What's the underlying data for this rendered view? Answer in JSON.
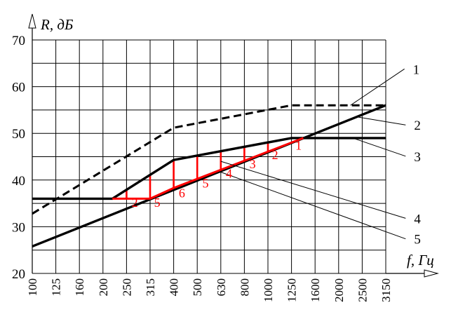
{
  "chart_data": {
    "type": "line",
    "xlabel": "f, Гц",
    "ylabel": "R, дБ",
    "categories": [
      "100",
      "125",
      "160",
      "200",
      "250",
      "315",
      "400",
      "500",
      "630",
      "800",
      "1000",
      "1250",
      "1600",
      "2000",
      "2500",
      "3150"
    ],
    "ylim": [
      20,
      70
    ],
    "yticks": [
      20,
      30,
      40,
      50,
      60,
      70
    ],
    "grid": true,
    "colors": {
      "main": "#000000",
      "highlight": "#ff0000"
    },
    "series": [
      {
        "label": "1",
        "style": "dashed",
        "points": [
          [
            0,
            32.8
          ],
          [
            6,
            51.2
          ],
          [
            11,
            56
          ],
          [
            15,
            56
          ]
        ]
      },
      {
        "label": "2",
        "style": "solid",
        "points": [
          [
            0,
            25.8
          ],
          [
            15,
            56
          ]
        ]
      },
      {
        "label": "3",
        "style": "solid",
        "points": [
          [
            0,
            36
          ],
          [
            3.4,
            36
          ],
          [
            6,
            44.3
          ],
          [
            11,
            49
          ],
          [
            15,
            49
          ]
        ]
      },
      {
        "label": "4",
        "style": "solid-red",
        "points": [
          [
            3.4,
            36
          ],
          [
            5,
            36
          ],
          [
            6,
            38.3
          ],
          [
            11.5,
            49
          ]
        ]
      }
    ],
    "fill_lines": [
      {
        "x": 4,
        "y_bottom": 36,
        "y_top": 38.1
      },
      {
        "x": 5,
        "y_bottom": 36,
        "y_top": 41.2
      },
      {
        "x": 6,
        "y_bottom": 38.3,
        "y_top": 44.3
      },
      {
        "x": 7,
        "y_bottom": 40.2,
        "y_top": 45.2
      },
      {
        "x": 8,
        "y_bottom": 42.0,
        "y_top": 46.2
      },
      {
        "x": 9,
        "y_bottom": 44.0,
        "y_top": 47.1
      },
      {
        "x": 10,
        "y_bottom": 46.0,
        "y_top": 48.0
      }
    ],
    "segment_labels": [
      {
        "text": "2",
        "x": 4.35,
        "y": 34.3
      },
      {
        "text": "5",
        "x": 5.3,
        "y": 34.3
      },
      {
        "text": "6",
        "x": 6.35,
        "y": 36.3
      },
      {
        "text": "5",
        "x": 7.35,
        "y": 38.4
      },
      {
        "text": "4",
        "x": 8.35,
        "y": 40.5
      },
      {
        "text": "3",
        "x": 9.35,
        "y": 42.5
      },
      {
        "text": "2",
        "x": 10.3,
        "y": 44.5
      },
      {
        "text": "1",
        "x": 11.3,
        "y": 46.5
      }
    ],
    "callouts": [
      {
        "text": "1",
        "anchor_x": 13.5,
        "anchor_y": 56,
        "label_x": 16.15,
        "label_y": 63.8
      },
      {
        "text": "2",
        "anchor_x": 13.8,
        "anchor_y": 53.5,
        "label_x": 16.2,
        "label_y": 51.8
      },
      {
        "text": "3",
        "anchor_x": 13.6,
        "anchor_y": 49,
        "label_x": 16.2,
        "label_y": 45.1
      },
      {
        "text": "4",
        "anchor_x": 8,
        "anchor_y": 44,
        "label_x": 16.2,
        "label_y": 31.8
      },
      {
        "text": "5",
        "anchor_x": 8,
        "anchor_y": 41.7,
        "label_x": 16.2,
        "label_y": 27.4
      }
    ]
  }
}
